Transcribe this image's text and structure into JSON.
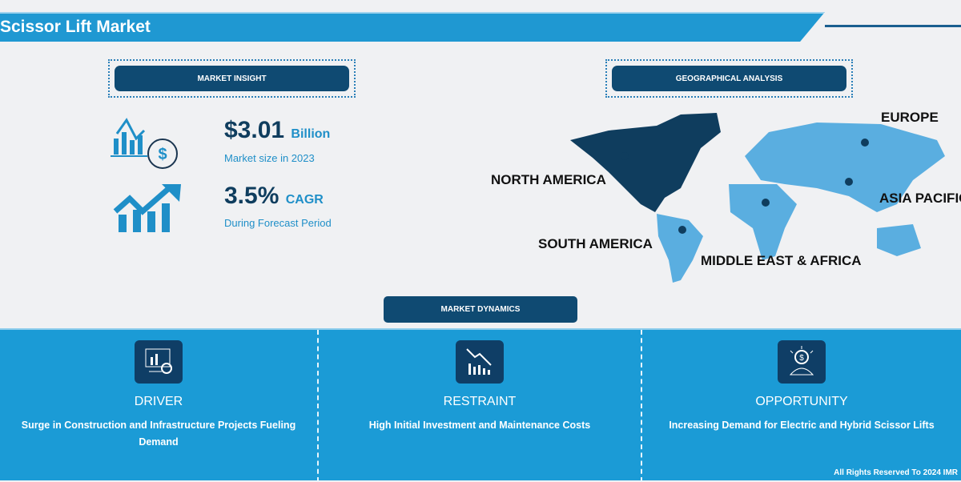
{
  "title": "Scissor Lift Market",
  "insight": {
    "label": "MARKET INSIGHT",
    "market_size": "$3.01",
    "market_unit": "Billion",
    "market_caption": "Market size in 2023",
    "cagr": "3.5%",
    "cagr_unit": "CAGR",
    "cagr_caption": "During Forecast Period"
  },
  "geo": {
    "label": "GEOGRAPHICAL ANALYSIS",
    "regions": [
      "NORTH AMERICA",
      "EUROPE",
      "ASIA PACIFIC",
      "SOUTH AMERICA",
      "MIDDLE EAST & AFRICA"
    ],
    "highlighted": "NORTH AMERICA"
  },
  "dynamics": {
    "label": "MARKET DYNAMICS",
    "items": [
      {
        "label": "DRIVER",
        "text": "Surge in Construction and Infrastructure Projects Fueling Demand",
        "icon": "analytics-monitor-icon"
      },
      {
        "label": "RESTRAINT",
        "text": "High Initial Investment and Maintenance Costs",
        "icon": "declining-chart-icon"
      },
      {
        "label": "OPPORTUNITY",
        "text": "Increasing Demand for Electric and Hybrid Scissor Lifts",
        "icon": "dollar-lightbulb-icon"
      }
    ]
  },
  "copyright": "All Rights Reserved To 2024 IMR",
  "colors": {
    "header": "#1f98d2",
    "navy": "#0f4a72",
    "continent": "#5aaee0",
    "highlight": "#0f3d5e"
  }
}
